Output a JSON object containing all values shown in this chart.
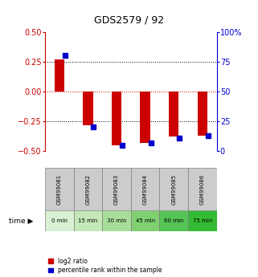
{
  "title": "GDS2579 / 92",
  "samples": [
    "GSM99081",
    "GSM99082",
    "GSM99083",
    "GSM99084",
    "GSM99085",
    "GSM99086"
  ],
  "time_labels": [
    "0 min",
    "15 min",
    "30 min",
    "45 min",
    "60 min",
    "75 min"
  ],
  "log2_ratio": [
    0.27,
    -0.28,
    -0.45,
    -0.43,
    -0.38,
    -0.37
  ],
  "percentile_rank": [
    80,
    20,
    5,
    7,
    11,
    13
  ],
  "ylim_left": [
    -0.5,
    0.5
  ],
  "ylim_right": [
    0,
    100
  ],
  "yticks_left": [
    -0.5,
    -0.25,
    0,
    0.25,
    0.5
  ],
  "yticks_right": [
    0,
    25,
    50,
    75,
    100
  ],
  "red_color": "#cc0000",
  "blue_color": "#0000cc",
  "zero_line_color": "#cc0000",
  "sample_bg_color": "#cccccc",
  "time_bg_colors": [
    "#d9f0d3",
    "#c4e8b8",
    "#a8de99",
    "#7fd070",
    "#55c455",
    "#33bb33"
  ]
}
